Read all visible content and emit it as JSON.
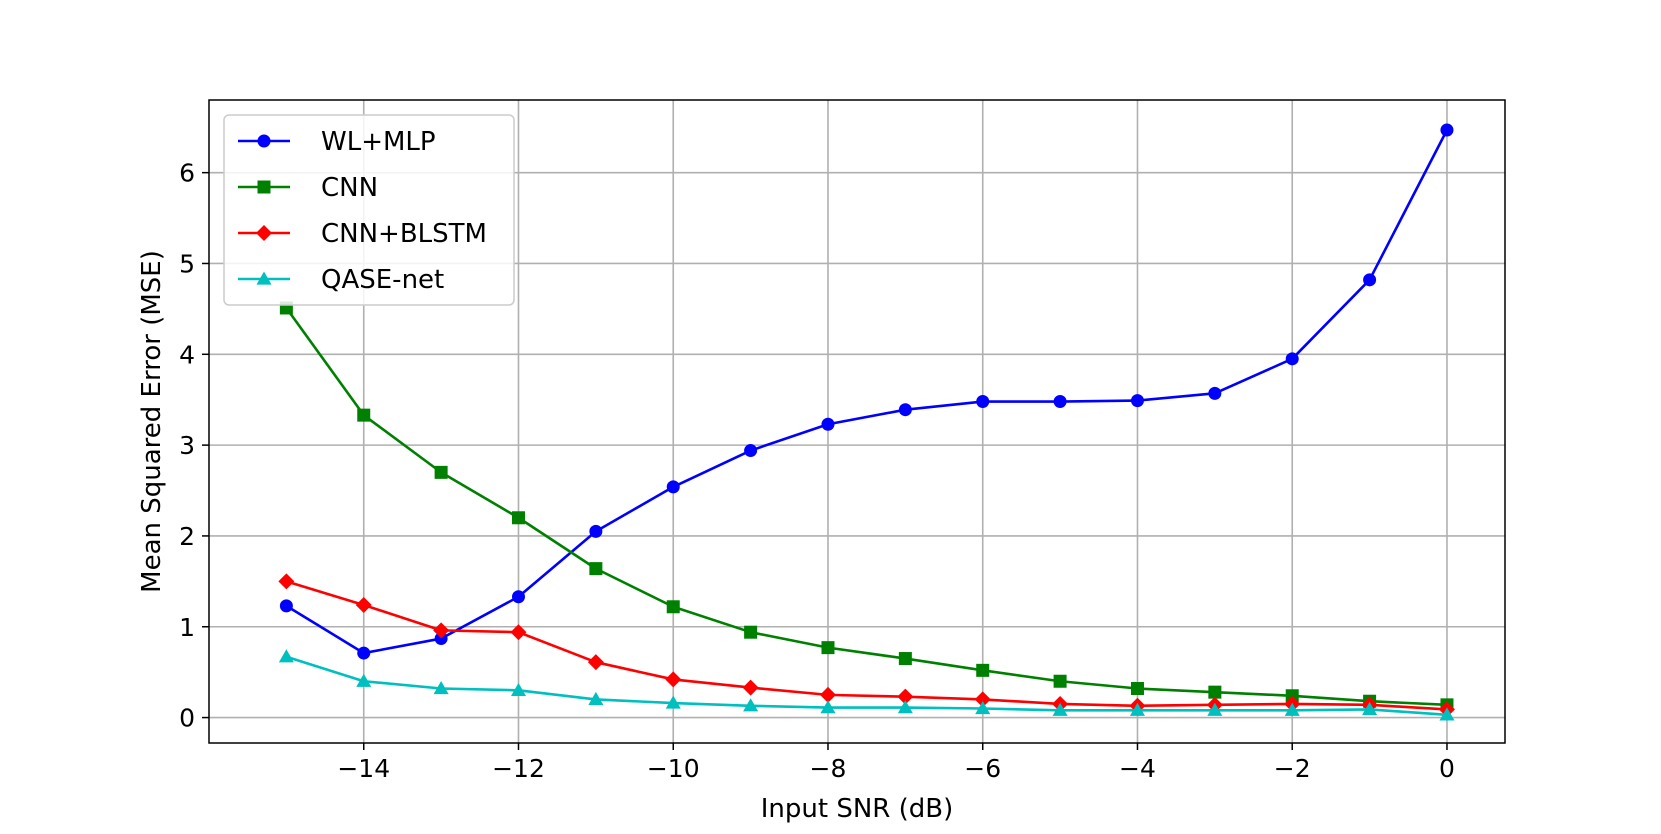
{
  "chart_data": {
    "type": "line",
    "title": "",
    "xlabel": "Input SNR (dB)",
    "ylabel": "Mean Squared Error (MSE)",
    "x": [
      -15,
      -14,
      -13,
      -12,
      -11,
      -10,
      -9,
      -8,
      -7,
      -6,
      -5,
      -4,
      -3,
      -2,
      -1,
      0
    ],
    "xlim": [
      -16,
      0.75
    ],
    "ylim": [
      -0.28,
      6.8
    ],
    "xticks": [
      -14,
      -12,
      -10,
      -8,
      -6,
      -4,
      -2,
      0
    ],
    "xtick_labels": [
      "−14",
      "−12",
      "−10",
      "−8",
      "−6",
      "−4",
      "−2",
      "0"
    ],
    "yticks": [
      0,
      1,
      2,
      3,
      4,
      5,
      6
    ],
    "ytick_labels": [
      "0",
      "1",
      "2",
      "3",
      "4",
      "5",
      "6"
    ],
    "grid": true,
    "legend_position": "top-left",
    "series": [
      {
        "name": "WL+MLP",
        "color": "#0000ff",
        "marker": "circle",
        "values": [
          1.23,
          0.71,
          0.87,
          1.33,
          2.05,
          2.54,
          2.94,
          3.23,
          3.39,
          3.48,
          3.48,
          3.49,
          3.57,
          3.95,
          4.82,
          6.47
        ]
      },
      {
        "name": "CNN",
        "color": "#008000",
        "marker": "square",
        "values": [
          4.51,
          3.33,
          2.7,
          2.2,
          1.64,
          1.22,
          0.94,
          0.77,
          0.65,
          0.52,
          0.4,
          0.32,
          0.28,
          0.24,
          0.18,
          0.14
        ]
      },
      {
        "name": "CNN+BLSTM",
        "color": "#ff0000",
        "marker": "diamond",
        "values": [
          1.5,
          1.24,
          0.96,
          0.94,
          0.61,
          0.42,
          0.33,
          0.25,
          0.23,
          0.2,
          0.15,
          0.13,
          0.14,
          0.15,
          0.14,
          0.09
        ]
      },
      {
        "name": "QASE-net",
        "color": "#00bfbf",
        "marker": "triangle",
        "values": [
          0.67,
          0.4,
          0.32,
          0.3,
          0.2,
          0.16,
          0.13,
          0.11,
          0.11,
          0.1,
          0.08,
          0.08,
          0.08,
          0.08,
          0.09,
          0.03
        ]
      }
    ]
  }
}
